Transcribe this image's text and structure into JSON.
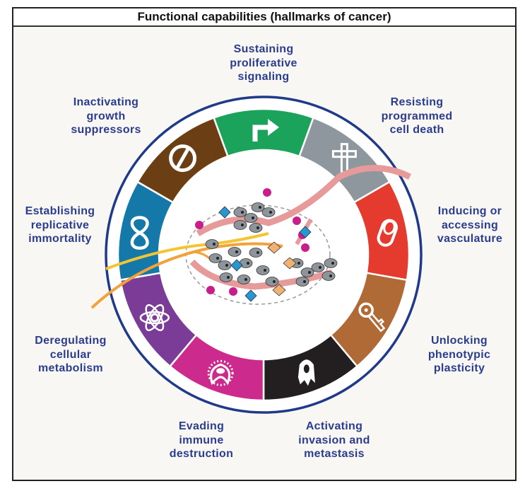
{
  "title": "Functional capabilities (hallmarks of cancer)",
  "hallmarks": [
    {
      "lines": [
        "Sustaining",
        "proliferative",
        "signaling"
      ],
      "color": "#1ba35c",
      "icon": "turn-arrow-icon"
    },
    {
      "lines": [
        "Resisting",
        "programmed",
        "cell death"
      ],
      "color": "#8e979d",
      "icon": "cross-icon"
    },
    {
      "lines": [
        "Inducing or",
        "accessing",
        "vasculature"
      ],
      "color": "#e53b2e",
      "icon": "vessel-icon"
    },
    {
      "lines": [
        "Unlocking",
        "phenotypic",
        "plasticity"
      ],
      "color": "#b06a36",
      "icon": "key-icon"
    },
    {
      "lines": [
        "Activating",
        "invasion and",
        "metastasis"
      ],
      "color": "#231f20",
      "icon": "migrating-cell-icon"
    },
    {
      "lines": [
        "Evading",
        "immune",
        "destruction"
      ],
      "color": "#cd2a8e",
      "icon": "immune-cell-icon"
    },
    {
      "lines": [
        "Deregulating",
        "cellular",
        "metabolism"
      ],
      "color": "#7a3c96",
      "icon": "atom-icon"
    },
    {
      "lines": [
        "Establishing",
        "replicative",
        "immortality"
      ],
      "color": "#1479a9",
      "icon": "infinity-icon"
    },
    {
      "lines": [
        "Inactivating",
        "growth",
        "suppressors"
      ],
      "color": "#6b3f13",
      "icon": "no-entry-icon"
    }
  ],
  "colors": {
    "ring_border": "#203a8a",
    "label_text": "#2b3d8c"
  }
}
